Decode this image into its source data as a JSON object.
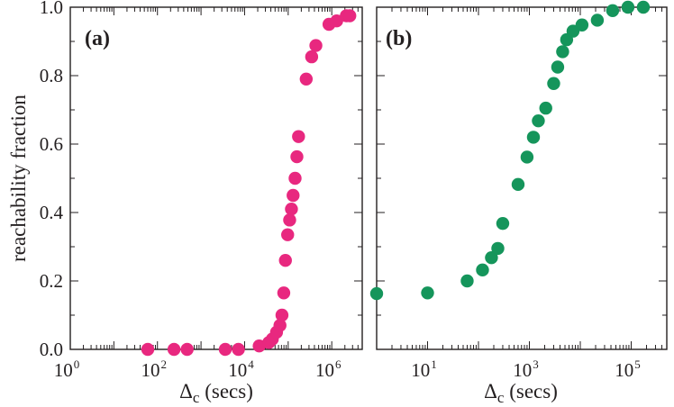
{
  "chart_data": [
    {
      "type": "scatter",
      "panel_label": "(a)",
      "xlabel": {
        "symbol": "Δ",
        "subscript": "c",
        "unit": " (secs)"
      },
      "ylabel": "reachability fraction",
      "xscale": "log",
      "xlim": [
        1,
        5000000
      ],
      "ylim": [
        0,
        1.0
      ],
      "grid": false,
      "x_ticks": [
        {
          "base": "10",
          "exp": "0",
          "value": 1
        },
        {
          "base": "10",
          "exp": "2",
          "value": 100
        },
        {
          "base": "10",
          "exp": "4",
          "value": 10000
        },
        {
          "base": "10",
          "exp": "6",
          "value": 1000000
        }
      ],
      "y_ticks": [
        "0.0",
        "0.2",
        "0.4",
        "0.6",
        "0.8",
        "1.0"
      ],
      "color": "#e8287f",
      "series": [
        {
          "x": [
            60,
            240,
            480,
            3600,
            7200,
            21600,
            36000,
            43200,
            54000,
            64800,
            72000,
            79200,
            86400,
            97200,
            108000,
            118800,
            129600,
            144000,
            158400,
            172800,
            259200,
            345600,
            432000,
            864000,
            1296000,
            2160000,
            2592000
          ],
          "y": [
            0.0,
            0.0,
            0.0,
            0.0,
            0.0,
            0.01,
            0.02,
            0.03,
            0.05,
            0.07,
            0.1,
            0.165,
            0.26,
            0.335,
            0.378,
            0.41,
            0.45,
            0.5,
            0.563,
            0.622,
            0.79,
            0.855,
            0.888,
            0.95,
            0.96,
            0.975,
            0.975
          ]
        }
      ]
    },
    {
      "type": "scatter",
      "panel_label": "(b)",
      "xlabel": {
        "symbol": "Δ",
        "subscript": "c",
        "unit": " (secs)"
      },
      "ylabel": "",
      "xscale": "log",
      "xlim": [
        1,
        500000
      ],
      "ylim": [
        0,
        1.0
      ],
      "grid": false,
      "x_ticks": [
        {
          "base": "10",
          "exp": "1",
          "value": 10
        },
        {
          "base": "10",
          "exp": "3",
          "value": 1000
        },
        {
          "base": "10",
          "exp": "5",
          "value": 100000
        }
      ],
      "color": "#15955b",
      "series": [
        {
          "x": [
            1,
            10,
            60,
            120,
            180,
            240,
            300,
            600,
            900,
            1200,
            1500,
            2100,
            3000,
            3600,
            4500,
            5400,
            7200,
            10800,
            21600,
            43200,
            86400,
            172800
          ],
          "y": [
            0.163,
            0.165,
            0.2,
            0.232,
            0.268,
            0.295,
            0.368,
            0.482,
            0.562,
            0.62,
            0.668,
            0.705,
            0.777,
            0.825,
            0.87,
            0.905,
            0.93,
            0.948,
            0.962,
            0.99,
            1.0,
            1.0
          ]
        }
      ]
    }
  ]
}
